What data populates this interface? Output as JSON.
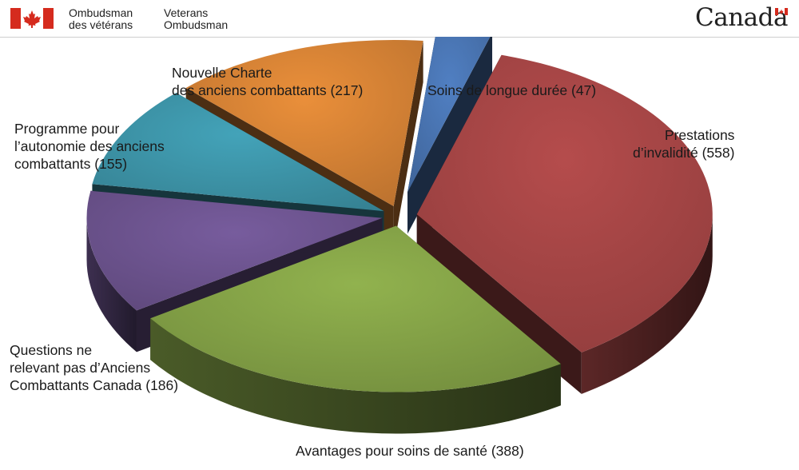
{
  "header": {
    "org_fr": [
      "Ombudsman",
      "des vétérans"
    ],
    "org_en": [
      "Veterans",
      "Ombudsman"
    ],
    "wordmark": "Canada",
    "colors": {
      "flag_red": "#d52b1e"
    },
    "icons": [
      "canada-flag-icon"
    ]
  },
  "chart_data": {
    "type": "pie",
    "style": "3d-exploded",
    "slices": [
      {
        "label": [
          "Soins de longue durée (47)"
        ],
        "value": 47,
        "color": "#4a76b4"
      },
      {
        "label": [
          "Prestations",
          "d’invalidité (558)"
        ],
        "value": 558,
        "color": "#a84646"
      },
      {
        "label": [
          "Avantages pour soins de santé (388)"
        ],
        "value": 388,
        "color": "#86a548"
      },
      {
        "label": [
          "Questions ne",
          "relevant pas d’Anciens",
          "Combattants Canada (186)"
        ],
        "value": 186,
        "color": "#6e5591"
      },
      {
        "label": [
          "Programme pour",
          "l’autonomie des anciens",
          "combattants (155)"
        ],
        "value": 155,
        "color": "#3e97ab"
      },
      {
        "label": [
          "Nouvelle Charte",
          "des anciens combattants (217)"
        ],
        "value": 217,
        "color": "#d98436"
      }
    ]
  }
}
